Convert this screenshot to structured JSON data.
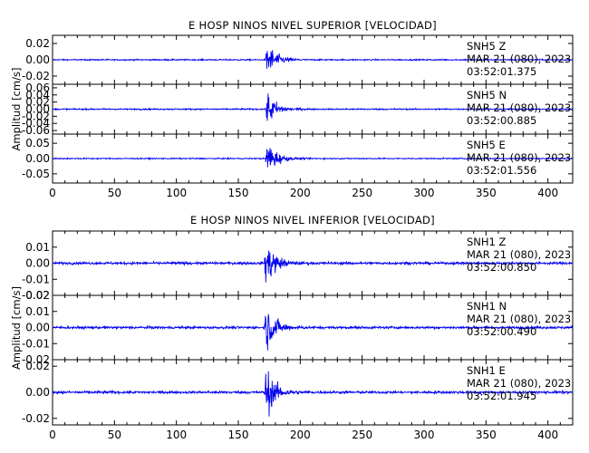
{
  "chart_data": [
    {
      "type": "line",
      "title": "E HOSP NINOS NIVEL SUPERIOR [VELOCIDAD]",
      "ylabel": "Amplitud [cm/s]",
      "xlim": [
        0,
        420
      ],
      "x_ticks": [
        "0",
        "50",
        "100",
        "150",
        "200",
        "250",
        "300",
        "350",
        "400"
      ],
      "color": "#0000ee",
      "traces": [
        {
          "station": "SNH5",
          "channel": "Z",
          "date": "MAR 21 (080), 2023",
          "time": "03:52:01.375",
          "ylim": [
            -0.03,
            0.03
          ],
          "y_ticks": [
            "0.02",
            "0.00",
            "-0.02"
          ],
          "event_onset_s": 172,
          "noise_amp": 0.0008,
          "peak_amp": 0.026
        },
        {
          "station": "SNH5",
          "channel": "N",
          "date": "MAR 21 (080), 2023",
          "time": "03:52:00.885",
          "ylim": [
            -0.07,
            0.07
          ],
          "y_ticks": [
            "0.06",
            "0.04",
            "0.02",
            "0.00",
            "-0.02",
            "-0.04",
            "-0.06"
          ],
          "event_onset_s": 172,
          "noise_amp": 0.002,
          "peak_amp": 0.06
        },
        {
          "station": "SNH5",
          "channel": "E",
          "date": "MAR 21 (080), 2023",
          "time": "03:52:01.556",
          "ylim": [
            -0.08,
            0.08
          ],
          "y_ticks": [
            "0.05",
            "0.00",
            "-0.05"
          ],
          "event_onset_s": 172,
          "noise_amp": 0.002,
          "peak_amp": 0.075
        }
      ]
    },
    {
      "type": "line",
      "title": "E HOSP NINOS NIVEL INFERIOR [VELOCIDAD]",
      "ylabel": "Amplitud [cm/s]",
      "xlim": [
        0,
        420
      ],
      "x_ticks": [
        "0",
        "50",
        "100",
        "150",
        "200",
        "250",
        "300",
        "350",
        "400"
      ],
      "color": "#0000ee",
      "traces": [
        {
          "station": "SNH1",
          "channel": "Z",
          "date": "MAR 21 (080), 2023",
          "time": "03:52:00.850",
          "ylim": [
            -0.02,
            0.02
          ],
          "y_ticks": [
            "0.01",
            "0.00",
            "-0.01",
            "-0.02"
          ],
          "event_onset_s": 171,
          "noise_amp": 0.0008,
          "peak_amp": 0.018
        },
        {
          "station": "SNH1",
          "channel": "N",
          "date": "MAR 21 (080), 2023",
          "time": "03:52:00.490",
          "ylim": [
            -0.02,
            0.02
          ],
          "y_ticks": [
            "0.02",
            "0.01",
            "0.00",
            "-0.01",
            "-0.02"
          ],
          "event_onset_s": 171,
          "noise_amp": 0.0008,
          "peak_amp": 0.018
        },
        {
          "station": "SNH1",
          "channel": "E",
          "date": "MAR 21 (080), 2023",
          "time": "03:52:01.945",
          "ylim": [
            -0.025,
            0.025
          ],
          "y_ticks": [
            "0.02",
            "0.00",
            "-0.02"
          ],
          "event_onset_s": 171,
          "noise_amp": 0.001,
          "peak_amp": 0.024
        }
      ]
    }
  ]
}
